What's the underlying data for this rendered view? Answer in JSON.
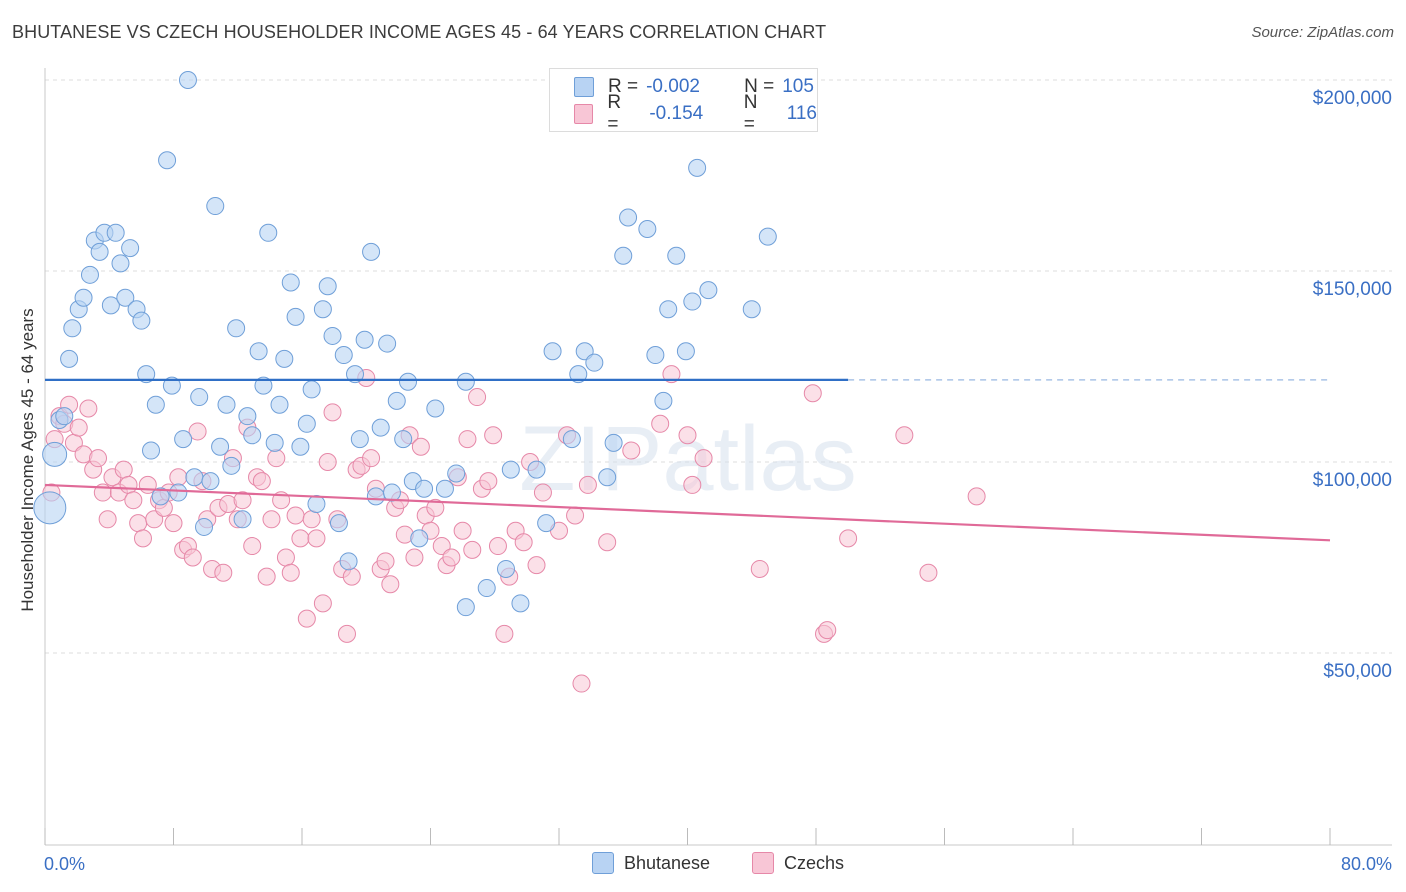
{
  "title": "BHUTANESE VS CZECH HOUSEHOLDER INCOME AGES 45 - 64 YEARS CORRELATION CHART",
  "source": "Source: ZipAtlas.com",
  "watermark": "ZIPatlas",
  "legend": {
    "rows": [
      {
        "r_label": "R =",
        "r_value": "-0.002",
        "n_label": "N =",
        "n_value": "105",
        "color": "#a9c8f0",
        "edge": "#6f9fd8"
      },
      {
        "r_label": "R =",
        "r_value": "-0.154",
        "n_label": "N =",
        "n_value": "116",
        "color": "#f7bcd0",
        "edge": "#e688a8"
      }
    ]
  },
  "bottom_legend": [
    "Bhutanese",
    "Czechs"
  ],
  "chart_data": {
    "type": "scatter",
    "ylabel": "Householder Income Ages 45 - 64 years",
    "x_tick_labels": [
      "0.0%",
      "80.0%"
    ],
    "y_tick_labels": [
      "$50,000",
      "$100,000",
      "$150,000",
      "$200,000"
    ],
    "xlim": [
      0,
      80
    ],
    "ylim": [
      0,
      210000
    ],
    "grid": true,
    "colors": {
      "bhutanese": "#6f9fd8",
      "bhutanese_fill": "#b8d3f3",
      "czechs": "#e688a8",
      "czechs_fill": "#f8c6d6",
      "trend_blue": "#2f6fc6",
      "trend_pink": "#e06a98",
      "axis_text": "#3a6fc4"
    },
    "series": [
      {
        "name": "Bhutanese",
        "trend": {
          "x": [
            0,
            50
          ],
          "y": [
            121500,
            121500
          ],
          "dashed_to": 80
        },
        "points": [
          [
            0.3,
            88000
          ],
          [
            0.6,
            102000
          ],
          [
            0.9,
            111000
          ],
          [
            1.2,
            112000
          ],
          [
            1.5,
            127000
          ],
          [
            1.7,
            135000
          ],
          [
            2.1,
            140000
          ],
          [
            2.4,
            143000
          ],
          [
            2.8,
            149000
          ],
          [
            3.1,
            158000
          ],
          [
            3.4,
            155000
          ],
          [
            3.7,
            160000
          ],
          [
            4.1,
            141000
          ],
          [
            4.4,
            160000
          ],
          [
            4.7,
            152000
          ],
          [
            5.0,
            143000
          ],
          [
            5.3,
            156000
          ],
          [
            5.7,
            140000
          ],
          [
            6.0,
            137000
          ],
          [
            6.3,
            123000
          ],
          [
            6.6,
            103000
          ],
          [
            6.9,
            115000
          ],
          [
            7.2,
            91000
          ],
          [
            7.6,
            179000
          ],
          [
            7.9,
            120000
          ],
          [
            8.3,
            92000
          ],
          [
            8.6,
            106000
          ],
          [
            8.9,
            200000
          ],
          [
            9.3,
            96000
          ],
          [
            9.6,
            117000
          ],
          [
            9.9,
            83000
          ],
          [
            10.3,
            95000
          ],
          [
            10.6,
            167000
          ],
          [
            10.9,
            104000
          ],
          [
            11.3,
            115000
          ],
          [
            11.6,
            99000
          ],
          [
            11.9,
            135000
          ],
          [
            12.3,
            85000
          ],
          [
            12.6,
            112000
          ],
          [
            12.9,
            107000
          ],
          [
            13.3,
            129000
          ],
          [
            13.6,
            120000
          ],
          [
            13.9,
            160000
          ],
          [
            14.3,
            105000
          ],
          [
            14.6,
            115000
          ],
          [
            14.9,
            127000
          ],
          [
            15.3,
            147000
          ],
          [
            15.6,
            138000
          ],
          [
            15.9,
            104000
          ],
          [
            16.3,
            110000
          ],
          [
            16.6,
            119000
          ],
          [
            16.9,
            89000
          ],
          [
            17.3,
            140000
          ],
          [
            17.6,
            146000
          ],
          [
            17.9,
            133000
          ],
          [
            18.3,
            84000
          ],
          [
            18.6,
            128000
          ],
          [
            18.9,
            74000
          ],
          [
            19.3,
            123000
          ],
          [
            19.6,
            106000
          ],
          [
            19.9,
            132000
          ],
          [
            20.3,
            155000
          ],
          [
            20.6,
            91000
          ],
          [
            20.9,
            109000
          ],
          [
            21.3,
            131000
          ],
          [
            21.6,
            92000
          ],
          [
            21.9,
            116000
          ],
          [
            22.3,
            106000
          ],
          [
            22.6,
            121000
          ],
          [
            22.9,
            95000
          ],
          [
            23.3,
            80000
          ],
          [
            23.6,
            93000
          ],
          [
            24.3,
            114000
          ],
          [
            24.9,
            93000
          ],
          [
            25.6,
            97000
          ],
          [
            26.2,
            121000
          ],
          [
            26.2,
            62000
          ],
          [
            27.5,
            67000
          ],
          [
            28.7,
            72000
          ],
          [
            29.0,
            98000
          ],
          [
            29.6,
            63000
          ],
          [
            30.6,
            98000
          ],
          [
            31.2,
            84000
          ],
          [
            31.6,
            129000
          ],
          [
            32.8,
            106000
          ],
          [
            33.2,
            123000
          ],
          [
            33.6,
            129000
          ],
          [
            34.2,
            126000
          ],
          [
            35.0,
            96000
          ],
          [
            35.4,
            105000
          ],
          [
            36.0,
            154000
          ],
          [
            36.3,
            164000
          ],
          [
            37.5,
            161000
          ],
          [
            38.0,
            128000
          ],
          [
            38.5,
            116000
          ],
          [
            38.8,
            140000
          ],
          [
            39.3,
            154000
          ],
          [
            39.9,
            129000
          ],
          [
            40.3,
            142000
          ],
          [
            40.6,
            177000
          ],
          [
            41.3,
            145000
          ],
          [
            44.0,
            140000
          ],
          [
            45.0,
            159000
          ]
        ]
      },
      {
        "name": "Czechs",
        "trend": {
          "x": [
            0,
            80
          ],
          "y": [
            94000,
            79500
          ]
        },
        "points": [
          [
            0.4,
            92000
          ],
          [
            0.6,
            106000
          ],
          [
            0.9,
            112000
          ],
          [
            1.2,
            110000
          ],
          [
            1.5,
            115000
          ],
          [
            1.8,
            105000
          ],
          [
            2.1,
            109000
          ],
          [
            2.4,
            102000
          ],
          [
            2.7,
            114000
          ],
          [
            3.0,
            98000
          ],
          [
            3.3,
            101000
          ],
          [
            3.6,
            92000
          ],
          [
            3.9,
            85000
          ],
          [
            4.2,
            96000
          ],
          [
            4.6,
            92000
          ],
          [
            4.9,
            98000
          ],
          [
            5.2,
            94000
          ],
          [
            5.5,
            90000
          ],
          [
            5.8,
            84000
          ],
          [
            6.1,
            80000
          ],
          [
            6.4,
            94000
          ],
          [
            6.8,
            85000
          ],
          [
            7.1,
            90000
          ],
          [
            7.4,
            88000
          ],
          [
            7.7,
            92000
          ],
          [
            8.0,
            84000
          ],
          [
            8.3,
            96000
          ],
          [
            8.6,
            77000
          ],
          [
            8.9,
            78000
          ],
          [
            9.2,
            75000
          ],
          [
            9.5,
            108000
          ],
          [
            9.8,
            95000
          ],
          [
            10.1,
            85000
          ],
          [
            10.4,
            72000
          ],
          [
            10.8,
            88000
          ],
          [
            11.1,
            71000
          ],
          [
            11.4,
            89000
          ],
          [
            11.7,
            101000
          ],
          [
            12.0,
            85000
          ],
          [
            12.3,
            90000
          ],
          [
            12.6,
            109000
          ],
          [
            12.9,
            78000
          ],
          [
            13.2,
            96000
          ],
          [
            13.5,
            95000
          ],
          [
            13.8,
            70000
          ],
          [
            14.1,
            85000
          ],
          [
            14.4,
            101000
          ],
          [
            14.7,
            90000
          ],
          [
            15.0,
            75000
          ],
          [
            15.3,
            71000
          ],
          [
            15.6,
            86000
          ],
          [
            15.9,
            80000
          ],
          [
            16.3,
            59000
          ],
          [
            16.6,
            85000
          ],
          [
            16.9,
            80000
          ],
          [
            17.3,
            63000
          ],
          [
            17.6,
            100000
          ],
          [
            17.9,
            113000
          ],
          [
            18.2,
            85000
          ],
          [
            18.5,
            72000
          ],
          [
            18.8,
            55000
          ],
          [
            19.1,
            70000
          ],
          [
            19.4,
            98000
          ],
          [
            19.7,
            99000
          ],
          [
            20.0,
            122000
          ],
          [
            20.3,
            101000
          ],
          [
            20.6,
            93000
          ],
          [
            20.9,
            72000
          ],
          [
            21.2,
            74000
          ],
          [
            21.5,
            68000
          ],
          [
            21.8,
            88000
          ],
          [
            22.1,
            90000
          ],
          [
            22.4,
            81000
          ],
          [
            22.7,
            107000
          ],
          [
            23.0,
            75000
          ],
          [
            23.4,
            104000
          ],
          [
            23.7,
            86000
          ],
          [
            24.0,
            82000
          ],
          [
            24.3,
            88000
          ],
          [
            24.7,
            78000
          ],
          [
            25.0,
            73000
          ],
          [
            25.3,
            75000
          ],
          [
            25.7,
            96000
          ],
          [
            26.0,
            82000
          ],
          [
            26.3,
            106000
          ],
          [
            26.6,
            77000
          ],
          [
            26.9,
            117000
          ],
          [
            27.2,
            93000
          ],
          [
            27.6,
            95000
          ],
          [
            27.9,
            107000
          ],
          [
            28.2,
            78000
          ],
          [
            28.6,
            55000
          ],
          [
            28.9,
            70000
          ],
          [
            29.3,
            82000
          ],
          [
            29.8,
            79000
          ],
          [
            30.2,
            100000
          ],
          [
            30.6,
            73000
          ],
          [
            31.0,
            92000
          ],
          [
            32.0,
            82000
          ],
          [
            32.5,
            107000
          ],
          [
            33.0,
            86000
          ],
          [
            33.4,
            42000
          ],
          [
            33.8,
            94000
          ],
          [
            35.0,
            79000
          ],
          [
            36.5,
            103000
          ],
          [
            38.3,
            110000
          ],
          [
            39.0,
            123000
          ],
          [
            40.0,
            107000
          ],
          [
            40.3,
            94000
          ],
          [
            41.0,
            101000
          ],
          [
            44.5,
            72000
          ],
          [
            47.8,
            118000
          ],
          [
            48.5,
            55000
          ],
          [
            48.7,
            56000
          ],
          [
            50.0,
            80000
          ],
          [
            53.5,
            107000
          ],
          [
            55.0,
            71000
          ],
          [
            58.0,
            91000
          ]
        ]
      }
    ]
  }
}
